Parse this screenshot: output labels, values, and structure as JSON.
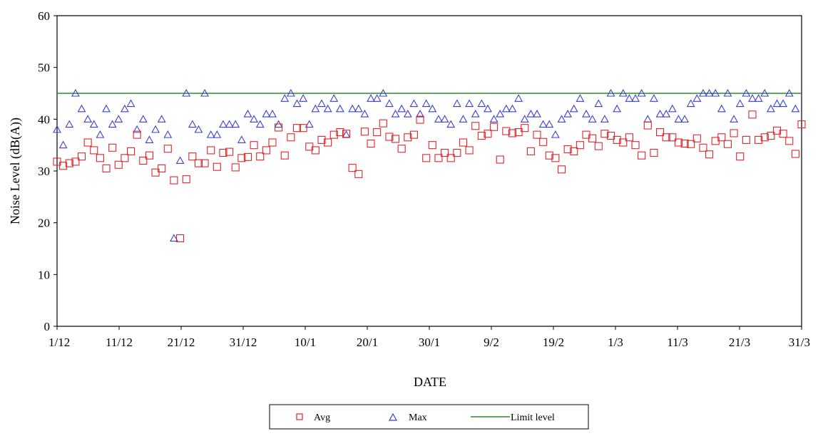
{
  "chart_data": {
    "type": "scatter",
    "title": "",
    "xlabel": "DATE",
    "ylabel": "Noise Level (dB(A))",
    "x_tick_labels": [
      "1/12",
      "11/12",
      "21/12",
      "31/12",
      "10/1",
      "20/1",
      "30/1",
      "9/2",
      "19/2",
      "1/3",
      "11/3",
      "21/3",
      "31/3"
    ],
    "ylim": [
      0,
      60
    ],
    "y_ticks": [
      0,
      10,
      20,
      30,
      40,
      50,
      60
    ],
    "grid": false,
    "legend_position": "bottom-center",
    "series": [
      {
        "name": "Avg",
        "marker": "open-square",
        "color": "#e0262a",
        "values": [
          31.8,
          31.0,
          31.5,
          31.8,
          32.8,
          35.5,
          34.0,
          32.5,
          30.5,
          34.5,
          31.2,
          32.5,
          33.8,
          37.0,
          32.0,
          33.0,
          29.7,
          30.5,
          34.3,
          28.2,
          17.0,
          28.4,
          32.8,
          31.5,
          31.5,
          34.0,
          30.8,
          33.5,
          33.7,
          30.7,
          32.5,
          32.7,
          35.0,
          32.8,
          34.0,
          35.5,
          38.4,
          33.0,
          36.5,
          38.3,
          38.3,
          34.7,
          34.0,
          36.0,
          35.5,
          37.0,
          37.5,
          37.2,
          30.6,
          29.4,
          37.6,
          35.3,
          37.5,
          39.2,
          36.6,
          36.2,
          34.3,
          36.5,
          37.0,
          39.9,
          32.5,
          35.0,
          32.5,
          33.5,
          32.5,
          33.5,
          35.5,
          34.0,
          38.7,
          36.8,
          37.2,
          38.5,
          32.2,
          37.7,
          37.3,
          37.5,
          38.3,
          33.8,
          37.0,
          35.6,
          33.0,
          32.5,
          30.3,
          34.2,
          33.8,
          35.0,
          37.0,
          36.3,
          34.8,
          37.2,
          36.8,
          36.0,
          35.5,
          36.5,
          35.0,
          33.0,
          38.8,
          33.5,
          37.5,
          36.5,
          36.5,
          35.5,
          35.3,
          35.2,
          36.3,
          34.5,
          33.2,
          35.8,
          36.5,
          35.2,
          37.3,
          32.8,
          36.0,
          40.9,
          36.0,
          36.5,
          36.8,
          37.8,
          37.2,
          35.8,
          33.3,
          39.0
        ]
      },
      {
        "name": "Max",
        "marker": "open-triangle",
        "color": "#3a3fd1",
        "values": [
          38.0,
          35.0,
          39.0,
          45.0,
          42.0,
          40.0,
          39.0,
          37.0,
          42.0,
          39.0,
          40.0,
          42.0,
          43.0,
          38.0,
          40.0,
          36.0,
          38.0,
          40.0,
          37.0,
          17.0,
          32.0,
          45.0,
          39.0,
          38.0,
          45.0,
          37.0,
          37.0,
          39.0,
          39.0,
          39.0,
          36.0,
          41.0,
          40.0,
          39.0,
          41.0,
          41.0,
          39.0,
          44.0,
          45.0,
          43.0,
          44.0,
          39.0,
          42.0,
          43.0,
          42.0,
          44.0,
          42.0,
          37.0,
          42.0,
          42.0,
          41.0,
          44.0,
          44.0,
          45.0,
          43.0,
          41.0,
          42.0,
          41.0,
          43.0,
          41.0,
          43.0,
          42.0,
          40.0,
          40.0,
          39.0,
          43.0,
          40.0,
          43.0,
          41.0,
          43.0,
          42.0,
          40.0,
          41.0,
          42.0,
          42.0,
          44.0,
          40.0,
          41.0,
          41.0,
          39.0,
          39.0,
          37.0,
          40.0,
          41.0,
          42.0,
          44.0,
          41.0,
          40.0,
          43.0,
          40.0,
          45.0,
          42.0,
          45.0,
          44.0,
          44.0,
          45.0,
          40.0,
          44.0,
          41.0,
          41.0,
          42.0,
          40.0,
          40.0,
          43.0,
          44.0,
          45.0,
          45.0,
          45.0,
          42.0,
          45.0,
          40.0,
          43.0,
          45.0,
          44.0,
          44.0,
          45.0,
          42.0,
          43.0,
          43.0,
          45.0,
          42.0
        ]
      },
      {
        "name": "Limit level",
        "marker": "line",
        "color": "#2e8b2e",
        "value": 45
      }
    ]
  }
}
